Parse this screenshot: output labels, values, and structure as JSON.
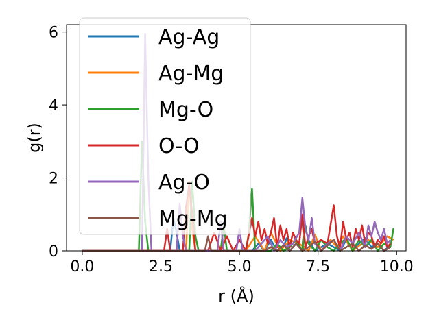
{
  "chart_data": {
    "type": "line",
    "title": "",
    "xlabel": "r (Å)",
    "ylabel": "g(r)",
    "xlim": [
      -0.5,
      10.3
    ],
    "ylim": [
      0,
      6.2
    ],
    "xticks": [
      "0.0",
      "2.5",
      "5.0",
      "7.5",
      "10.0"
    ],
    "yticks": [
      "0",
      "2",
      "4",
      "6"
    ],
    "legend_position": "upper-left",
    "grid": false,
    "series": [
      {
        "name": "Ag-Ag",
        "color": "#1f77b4",
        "x": [
          0,
          2.8,
          2.9,
          3.0,
          3.1,
          5.4,
          5.6,
          5.8,
          6.0,
          6.2,
          6.4,
          6.5,
          6.6,
          6.8,
          7.0,
          7.2,
          7.4,
          7.6,
          7.8,
          8.0,
          8.2,
          8.4,
          8.6,
          8.8,
          9.0,
          9.2,
          9.4,
          9.6,
          9.8
        ],
        "y": [
          0,
          0,
          0.9,
          0.5,
          0,
          0,
          0.2,
          0,
          0.3,
          0,
          0.1,
          0.35,
          0,
          0.2,
          0,
          0.3,
          0,
          0.1,
          0.2,
          0.1,
          0,
          0.3,
          0,
          0.2,
          0.35,
          0.1,
          0.2,
          0,
          0.15
        ]
      },
      {
        "name": "Ag-Mg",
        "color": "#ff7f0e",
        "x": [
          0,
          3.3,
          3.4,
          3.5,
          3.6,
          5.2,
          5.5,
          5.8,
          6.0,
          6.3,
          6.6,
          6.9,
          7.2,
          7.4,
          7.6,
          7.9,
          8.1,
          8.3,
          8.6,
          8.9,
          9.1,
          9.4,
          9.7,
          9.9
        ],
        "y": [
          0,
          0,
          1.9,
          0.6,
          0,
          0,
          0.4,
          0,
          0.5,
          0,
          0.3,
          0.2,
          0,
          0.45,
          0,
          0.3,
          0.1,
          0.4,
          0,
          0.2,
          0.3,
          0.1,
          0.4,
          0.3
        ]
      },
      {
        "name": "Mg-O",
        "color": "#2ca02c",
        "x": [
          0,
          1.8,
          1.9,
          2.0,
          2.1,
          3.4,
          3.5,
          3.6,
          3.7,
          4.4,
          4.5,
          4.6,
          5.2,
          5.3,
          5.4,
          5.5,
          6.0,
          6.2,
          6.4,
          6.6,
          6.8,
          7.0,
          7.1,
          7.2,
          7.4,
          7.6,
          7.8,
          8.0,
          8.2,
          8.4,
          8.6,
          8.8,
          9.0,
          9.2,
          9.4,
          9.6,
          9.8,
          9.9
        ],
        "y": [
          0,
          0,
          3.0,
          0.8,
          0,
          0,
          1.9,
          0.4,
          0,
          0,
          0.7,
          0,
          0,
          0.5,
          1.7,
          0,
          0,
          0.2,
          0,
          0.1,
          0.3,
          0,
          0.7,
          0.2,
          0,
          0.3,
          0.1,
          0,
          0.2,
          0.35,
          0,
          0.3,
          0.1,
          0.3,
          0,
          0.2,
          0.1,
          0.62
        ]
      },
      {
        "name": "O-O",
        "color": "#d62728",
        "x": [
          0,
          2.6,
          2.7,
          2.8,
          3.2,
          3.3,
          3.4,
          3.5,
          3.6,
          4.0,
          4.2,
          4.4,
          4.6,
          4.8,
          5.0,
          5.2,
          5.4,
          5.5,
          5.6,
          5.7,
          5.8,
          5.9,
          6.0,
          6.1,
          6.2,
          6.3,
          6.4,
          6.5,
          6.6,
          6.7,
          6.8,
          6.9,
          7.0,
          7.1,
          7.2,
          7.3,
          7.4,
          7.6,
          7.8,
          8.0,
          8.1,
          8.2,
          8.3,
          8.4,
          8.5,
          8.6,
          8.7,
          8.8,
          8.9,
          9.0,
          9.1,
          9.2,
          9.3,
          9.4,
          9.5,
          9.6,
          9.7,
          9.8
        ],
        "y": [
          0,
          0,
          0.6,
          0,
          0,
          1.2,
          1.8,
          1.0,
          0,
          0,
          0.5,
          0,
          0.4,
          0,
          0.3,
          0,
          0.9,
          0.4,
          0.8,
          0.3,
          0.6,
          0.2,
          0.5,
          0.9,
          0.1,
          0.7,
          0.3,
          0.6,
          0.1,
          0.5,
          0.3,
          0.2,
          1.0,
          0.1,
          0.4,
          0.6,
          0.2,
          0.3,
          0.2,
          1.25,
          0.4,
          0.1,
          0.8,
          0.3,
          0.5,
          0.1,
          0.6,
          0.3,
          0.7,
          0.2,
          0.5,
          0.4,
          0.1,
          0.3,
          0.2,
          0.4,
          0.1,
          0.2
        ]
      },
      {
        "name": "Ag-O",
        "color": "#9467bd",
        "x": [
          0,
          1.9,
          2.0,
          2.1,
          2.2,
          3.0,
          3.1,
          3.2,
          3.3,
          4.3,
          4.4,
          4.5,
          4.9,
          5.0,
          5.1,
          5.5,
          5.7,
          5.9,
          6.1,
          6.3,
          6.5,
          6.7,
          6.9,
          7.0,
          7.1,
          7.2,
          7.3,
          7.4,
          7.6,
          7.8,
          8.0,
          8.2,
          8.4,
          8.6,
          8.8,
          9.0,
          9.1,
          9.2,
          9.3,
          9.4,
          9.5,
          9.6,
          9.7,
          9.8
        ],
        "y": [
          0,
          0,
          5.95,
          2.0,
          0,
          0,
          1.3,
          0.4,
          0,
          0,
          0.8,
          0,
          0,
          0.6,
          0,
          0,
          0.2,
          0.4,
          0,
          0.3,
          0.1,
          0.2,
          0.5,
          1.45,
          0.6,
          0.3,
          0.9,
          0.2,
          0,
          0.2,
          0.3,
          0,
          0.4,
          0.2,
          0.5,
          0.1,
          0.7,
          0.4,
          0.8,
          0.5,
          0.3,
          0.6,
          0.2,
          0.3
        ]
      },
      {
        "name": "Mg-Mg",
        "color": "#8c564b",
        "x": [
          0,
          3.9,
          4.0,
          4.1,
          5.8,
          6.0,
          6.2,
          6.4,
          6.6,
          6.8,
          7.0,
          7.2,
          7.4,
          7.6,
          7.8,
          8.0,
          8.2,
          8.4,
          8.6,
          8.8,
          9.0,
          9.2,
          9.4,
          9.6,
          9.8
        ],
        "y": [
          0,
          0,
          0.4,
          0,
          0,
          0.1,
          0,
          0.15,
          0,
          0.2,
          0,
          0.1,
          0.25,
          0,
          0.15,
          0.3,
          0,
          0.1,
          0.2,
          0,
          0.15,
          0.05,
          0.2,
          0,
          0.1
        ]
      }
    ]
  }
}
